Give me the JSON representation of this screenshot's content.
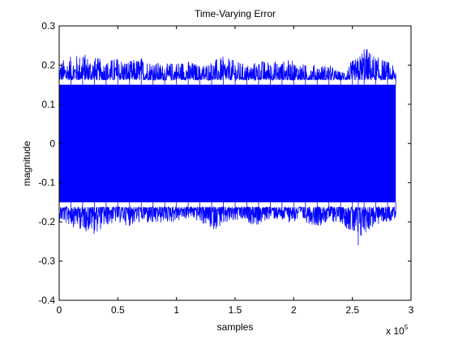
{
  "chart_data": {
    "type": "line",
    "title": "Time-Varying Error",
    "xlabel": "samples",
    "ylabel": "magnitude",
    "x_multiplier_label": {
      "base": "x 10",
      "exponent": "5"
    },
    "xlim": [
      0,
      300000
    ],
    "ylim": [
      -0.4,
      0.3
    ],
    "xticks": [
      0,
      50000,
      100000,
      150000,
      200000,
      250000,
      300000
    ],
    "xtick_labels": [
      "0",
      "0.5",
      "1",
      "1.5",
      "2",
      "2.5",
      "3"
    ],
    "yticks": [
      -0.4,
      -0.3,
      -0.2,
      -0.1,
      0,
      0.1,
      0.2,
      0.3
    ],
    "ytick_labels": [
      "-0.4",
      "-0.3",
      "-0.2",
      "-0.1",
      "0",
      "0.1",
      "0.2",
      "0.3"
    ],
    "grid": false,
    "series": [
      {
        "color": "#0000ff",
        "x_range": [
          0,
          287000
        ],
        "dense_band": [
          -0.15,
          0.15
        ],
        "envelope": {
          "x": [
            0,
            10000,
            20000,
            30000,
            40000,
            50000,
            60000,
            70000,
            80000,
            90000,
            100000,
            110000,
            120000,
            130000,
            140000,
            150000,
            160000,
            170000,
            180000,
            190000,
            200000,
            210000,
            220000,
            230000,
            240000,
            250000,
            255000,
            260000,
            270000,
            280000,
            287000
          ],
          "max": [
            0.2,
            0.21,
            0.22,
            0.21,
            0.2,
            0.21,
            0.2,
            0.21,
            0.2,
            0.19,
            0.2,
            0.2,
            0.19,
            0.2,
            0.21,
            0.2,
            0.19,
            0.2,
            0.2,
            0.2,
            0.2,
            0.19,
            0.19,
            0.19,
            0.17,
            0.2,
            0.21,
            0.24,
            0.21,
            0.2,
            0.18
          ],
          "min": [
            -0.19,
            -0.2,
            -0.21,
            -0.22,
            -0.2,
            -0.19,
            -0.2,
            -0.19,
            -0.2,
            -0.19,
            -0.19,
            -0.18,
            -0.19,
            -0.21,
            -0.2,
            -0.19,
            -0.19,
            -0.2,
            -0.18,
            -0.19,
            -0.19,
            -0.19,
            -0.2,
            -0.19,
            -0.19,
            -0.22,
            -0.26,
            -0.22,
            -0.2,
            -0.19,
            -0.18
          ]
        }
      }
    ]
  }
}
